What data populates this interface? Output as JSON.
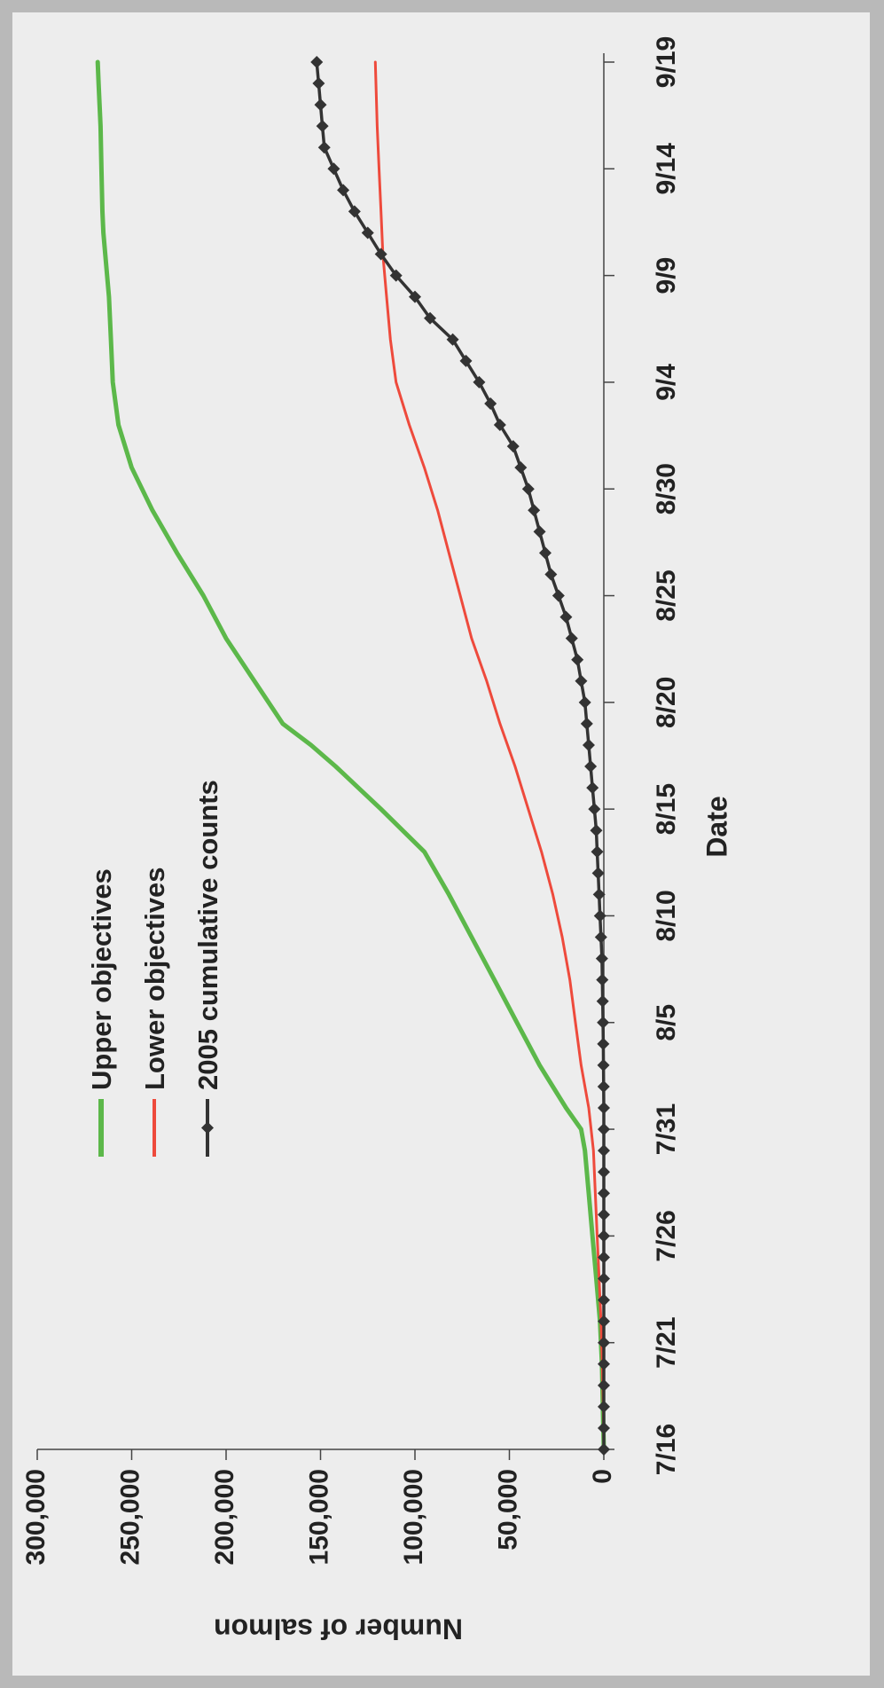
{
  "chart_data": {
    "type": "line",
    "title": "",
    "xlabel": "Date",
    "ylabel": "Number of salmon",
    "x_tick_labels": [
      "7/16",
      "7/21",
      "7/26",
      "7/31",
      "8/5",
      "8/10",
      "8/15",
      "8/20",
      "8/25",
      "8/30",
      "9/4",
      "9/9",
      "9/14",
      "9/19"
    ],
    "y_tick_labels": [
      "0",
      "50,000",
      "100,000",
      "150,000",
      "200,000",
      "250,000",
      "300,000"
    ],
    "ylim": [
      0,
      300000
    ],
    "xlim": [
      "7/16",
      "9/19"
    ],
    "x_day_range": [
      0,
      65
    ],
    "legend_position": "top-left",
    "grid": false,
    "series": [
      {
        "name": "Upper objectives",
        "color": "#5cb84a",
        "marker": "none",
        "x": [
          0,
          2,
          4,
          6,
          8,
          10,
          12,
          14,
          15,
          16,
          17,
          18,
          19,
          20,
          22,
          24,
          26,
          28,
          30,
          32,
          33,
          34,
          36,
          38,
          40,
          42,
          44,
          46,
          48,
          50,
          52,
          54,
          56,
          57,
          58,
          60,
          62,
          63,
          64,
          65
        ],
        "values": [
          0,
          500,
          1000,
          2000,
          4000,
          6000,
          8000,
          10000,
          12000,
          20000,
          27000,
          34000,
          40000,
          46000,
          58000,
          70000,
          82000,
          95000,
          118000,
          142000,
          155000,
          170000,
          185000,
          200000,
          212000,
          226000,
          239000,
          250000,
          257000,
          260000,
          261000,
          262000,
          264000,
          265000,
          265500,
          266000,
          266500,
          267000,
          267500,
          268000
        ]
      },
      {
        "name": "Lower objectives",
        "color": "#ee4a3c",
        "marker": "none",
        "x": [
          0,
          2,
          4,
          6,
          8,
          10,
          12,
          14,
          16,
          18,
          20,
          22,
          24,
          26,
          28,
          30,
          32,
          34,
          36,
          38,
          40,
          42,
          44,
          46,
          48,
          50,
          52,
          54,
          56,
          58,
          60,
          62,
          65
        ],
        "values": [
          0,
          300,
          800,
          1500,
          2500,
          3500,
          4500,
          5500,
          8000,
          12000,
          15000,
          18000,
          22000,
          27000,
          33000,
          40000,
          47000,
          55000,
          62000,
          70000,
          76000,
          82000,
          88000,
          95000,
          103000,
          110000,
          113000,
          115000,
          117000,
          118000,
          119000,
          120000,
          121000
        ]
      },
      {
        "name": "2005 cumulative counts",
        "color": "#333333",
        "marker": "diamond",
        "x": [
          0,
          1,
          2,
          3,
          4,
          5,
          6,
          7,
          8,
          9,
          10,
          11,
          12,
          13,
          14,
          15,
          16,
          17,
          18,
          19,
          20,
          21,
          22,
          23,
          24,
          25,
          26,
          27,
          28,
          29,
          30,
          31,
          32,
          33,
          34,
          35,
          36,
          37,
          38,
          39,
          40,
          41,
          42,
          43,
          44,
          45,
          46,
          47,
          48,
          49,
          50,
          51,
          52,
          53,
          54,
          55,
          56,
          57,
          58,
          59,
          60,
          61,
          62,
          63,
          64,
          65
        ],
        "values": [
          0,
          0,
          0,
          0,
          0,
          0,
          0,
          0,
          0,
          0,
          0,
          0,
          0,
          0,
          0,
          0,
          0,
          100,
          200,
          300,
          400,
          600,
          800,
          1000,
          1500,
          2000,
          2500,
          3000,
          3500,
          4000,
          5000,
          6000,
          7000,
          8000,
          9000,
          10000,
          12000,
          14000,
          17000,
          20000,
          24000,
          28000,
          31000,
          34000,
          37000,
          40000,
          44000,
          48000,
          55000,
          60000,
          66000,
          73000,
          80000,
          92000,
          100000,
          110000,
          118000,
          125000,
          132000,
          138000,
          143000,
          148000,
          149000,
          150000,
          151000,
          152000
        ]
      }
    ]
  }
}
